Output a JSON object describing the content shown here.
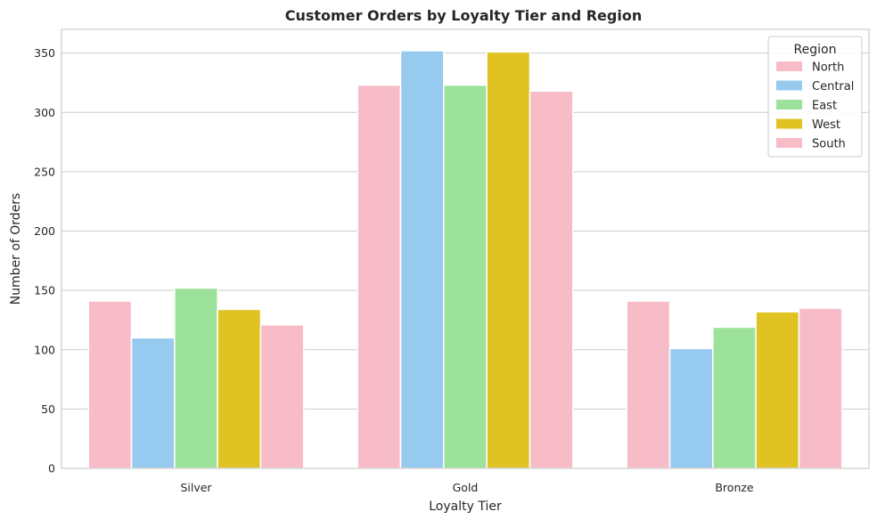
{
  "chart_data": {
    "type": "bar",
    "title": "Customer Orders by Loyalty Tier and Region",
    "xlabel": "Loyalty Tier",
    "ylabel": "Number of Orders",
    "categories": [
      "Silver",
      "Gold",
      "Bronze"
    ],
    "ylim": [
      0,
      370
    ],
    "yticks": [
      0,
      50,
      100,
      150,
      200,
      250,
      300,
      350
    ],
    "grid": "horizontal",
    "legend": {
      "title": "Region",
      "placement": "top-right"
    },
    "series": [
      {
        "name": "North",
        "color": "#f7bcc7",
        "values": [
          141,
          323,
          141
        ]
      },
      {
        "name": "Central",
        "color": "#96cbef",
        "values": [
          110,
          352,
          101
        ]
      },
      {
        "name": "East",
        "color": "#9de29a",
        "values": [
          152,
          323,
          119
        ]
      },
      {
        "name": "West",
        "color": "#e0c222",
        "values": [
          134,
          351,
          132
        ]
      },
      {
        "name": "South",
        "color": "#f7bcc7",
        "values": [
          121,
          318,
          135
        ]
      }
    ]
  }
}
